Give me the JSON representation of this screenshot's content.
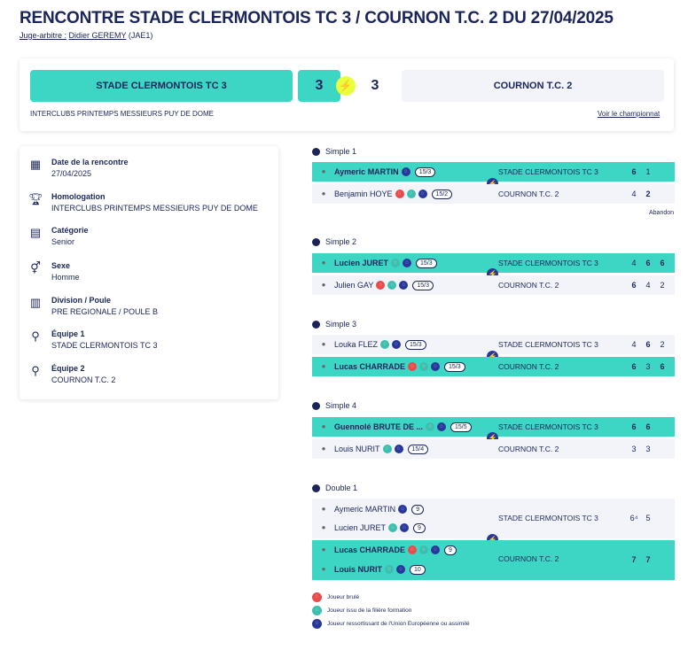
{
  "header": {
    "title": "RENCONTRE STADE CLERMONTOIS TC 3 / COURNON T.C. 2 DU 27/04/2025",
    "judge_label": "Juge-arbitre :",
    "judge_name": "Didier GEREMY",
    "judge_code": "(JAE1)"
  },
  "score": {
    "team1": "STADE CLERMONTOIS TC 3",
    "team2": "COURNON T.C. 2",
    "score1": "3",
    "score2": "3",
    "competition": "INTERCLUBS PRINTEMPS MESSIEURS PUY DE DOME",
    "championship_link": "Voir le championnat"
  },
  "info": {
    "date_label": "Date de la rencontre",
    "date_value": "27/04/2025",
    "homologation_label": "Homologation",
    "homologation_value": "INTERCLUBS PRINTEMPS MESSIEURS PUY DE DOME",
    "category_label": "Catégorie",
    "category_value": "Senior",
    "sex_label": "Sexe",
    "sex_value": "Homme",
    "division_label": "Division / Poule",
    "division_value": "PRE REGIONALE / POULE B",
    "team1_label": "Équipe 1",
    "team1_value": "STADE CLERMONTOIS TC 3",
    "team2_label": "Équipe 2",
    "team2_value": "COURNON T.C. 2"
  },
  "matches": {
    "s1": {
      "title": "Simple 1",
      "p1": "Aymeric MARTIN",
      "p1_rank": "15/3",
      "p1_team": "STADE CLERMONTOIS TC 3",
      "p1_sets": [
        "6",
        "1"
      ],
      "p2": "Benjamin HOYE",
      "p2_rank": "15/2",
      "p2_team": "COURNON T.C. 2",
      "p2_sets": [
        "4",
        "2"
      ],
      "note": "Abandon"
    },
    "s2": {
      "title": "Simple 2",
      "p1": "Lucien JURET",
      "p1_rank": "15/3",
      "p1_team": "STADE CLERMONTOIS TC 3",
      "p1_sets": [
        "4",
        "6",
        "6"
      ],
      "p2": "Julien GAY",
      "p2_rank": "15/3",
      "p2_team": "COURNON T.C. 2",
      "p2_sets": [
        "6",
        "4",
        "2"
      ]
    },
    "s3": {
      "title": "Simple 3",
      "p1": "Louka FLEZ",
      "p1_rank": "15/3",
      "p1_team": "STADE CLERMONTOIS TC 3",
      "p1_sets": [
        "4",
        "6",
        "2"
      ],
      "p2": "Lucas CHARRADE",
      "p2_rank": "15/3",
      "p2_team": "COURNON T.C. 2",
      "p2_sets": [
        "6",
        "3",
        "6"
      ]
    },
    "s4": {
      "title": "Simple 4",
      "p1": "Guennolé BRUTE DE ...",
      "p1_rank": "15/5",
      "p1_team": "STADE CLERMONTOIS TC 3",
      "p1_sets": [
        "6",
        "6"
      ],
      "p2": "Louis NURIT",
      "p2_rank": "15/4",
      "p2_team": "COURNON T.C. 2",
      "p2_sets": [
        "3",
        "3"
      ]
    },
    "d1": {
      "title": "Double 1",
      "a1": "Aymeric MARTIN",
      "a1_rank": "9",
      "a2": "Lucien JURET",
      "a2_rank": "9",
      "team_a": "STADE CLERMONTOIS TC 3",
      "team_a_sets": [
        "6⁴",
        "5"
      ],
      "b1": "Lucas CHARRADE",
      "b1_rank": "9",
      "b2": "Louis NURIT",
      "b2_rank": "10",
      "team_b": "COURNON T.C. 2",
      "team_b_sets": [
        "7",
        "7"
      ]
    }
  },
  "legend": {
    "burned": "Joueur brulé",
    "formation": "Joueur issu de la filière formation",
    "eu": "Joueur ressortissant de l'Union Européenne ou assimilé"
  },
  "colors": {
    "accent": "#3dd6c5",
    "navy": "#1b2559",
    "light": "#f2f4fa",
    "bolt": "#eaff3b"
  }
}
